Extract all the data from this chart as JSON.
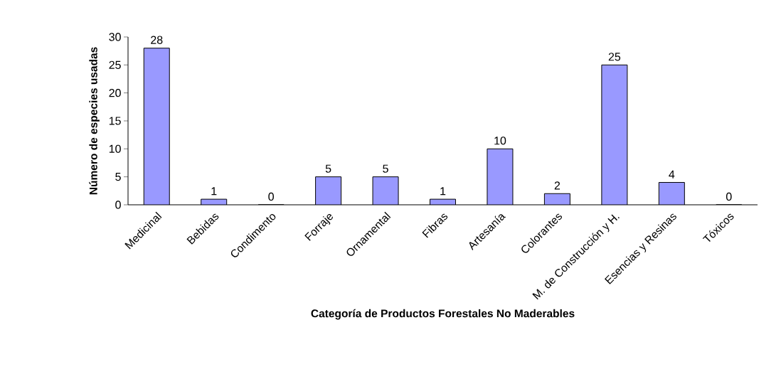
{
  "chart_data": {
    "type": "bar",
    "xlabel": "Categoría de Productos Forestales No Maderables",
    "ylabel": "Número de especies usadas",
    "categories": [
      "Medicinal",
      "Bebidas",
      "Condimento",
      "Forraje",
      "Ornamental",
      "Fibras",
      "Artesanía",
      "Colorantes",
      "M. de Construcción y H.",
      "Esencias y Resinas",
      "Tóxicos"
    ],
    "values": [
      28,
      1,
      0,
      5,
      5,
      1,
      10,
      2,
      25,
      4,
      0
    ],
    "color": "#9999ff",
    "ylim": [
      0,
      30
    ],
    "yticks": [
      0,
      5,
      10,
      15,
      20,
      25,
      30
    ],
    "data_labels": true,
    "grid": false
  }
}
